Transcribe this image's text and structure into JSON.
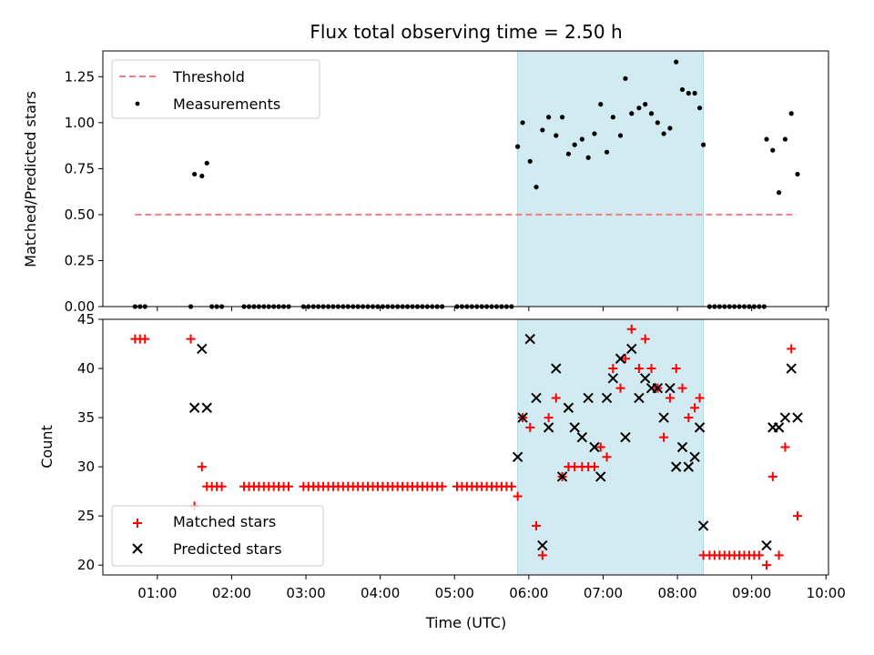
{
  "title": "Flux total observing time = 2.50 h",
  "xlabel": "Time (UTC)",
  "x_tick_labels": [
    "01:00",
    "02:00",
    "03:00",
    "04:00",
    "05:00",
    "06:00",
    "07:00",
    "08:00",
    "09:00",
    "10:00"
  ],
  "colors": {
    "threshold": "#f08080",
    "measurements": "#000000",
    "matched": "#ff0000",
    "predicted": "#000000",
    "span": "#add8e6"
  },
  "chart_data": [
    {
      "type": "scatter",
      "ylabel": "Matched/Predicted stars",
      "xlim": [
        "00:16",
        "10:02"
      ],
      "ylim": [
        0,
        1.39
      ],
      "y_ticks": [
        "0.00",
        "0.25",
        "0.50",
        "0.75",
        "1.00",
        "1.25"
      ],
      "shaded_span": [
        "05:51",
        "08:21"
      ],
      "legend": {
        "placement": "upper-left",
        "entries": [
          "Threshold",
          "Measurements"
        ]
      },
      "threshold": {
        "name": "Threshold",
        "y": 0.5,
        "x_range": [
          "00:42",
          "09:36"
        ]
      },
      "series": [
        {
          "name": "Measurements",
          "points": [
            [
              "00:42",
              0
            ],
            [
              "00:46",
              0
            ],
            [
              "00:50",
              0
            ],
            [
              "01:27",
              0
            ],
            [
              "01:30",
              0.72
            ],
            [
              "01:36",
              0.71
            ],
            [
              "01:40",
              0.78
            ],
            [
              "01:44",
              0
            ],
            [
              "01:48",
              0
            ],
            [
              "01:52",
              0
            ],
            [
              "02:10",
              0
            ],
            [
              "02:14",
              0
            ],
            [
              "02:18",
              0
            ],
            [
              "02:22",
              0
            ],
            [
              "02:26",
              0
            ],
            [
              "02:30",
              0
            ],
            [
              "02:34",
              0
            ],
            [
              "02:38",
              0
            ],
            [
              "02:42",
              0
            ],
            [
              "02:46",
              0
            ],
            [
              "02:58",
              0
            ],
            [
              "03:02",
              0
            ],
            [
              "03:06",
              0
            ],
            [
              "03:10",
              0
            ],
            [
              "03:14",
              0
            ],
            [
              "03:18",
              0
            ],
            [
              "03:22",
              0
            ],
            [
              "03:26",
              0
            ],
            [
              "03:30",
              0
            ],
            [
              "03:34",
              0
            ],
            [
              "03:38",
              0
            ],
            [
              "03:42",
              0
            ],
            [
              "03:46",
              0
            ],
            [
              "03:50",
              0
            ],
            [
              "03:54",
              0
            ],
            [
              "03:58",
              0
            ],
            [
              "04:02",
              0
            ],
            [
              "04:06",
              0
            ],
            [
              "04:10",
              0
            ],
            [
              "04:14",
              0
            ],
            [
              "04:18",
              0
            ],
            [
              "04:22",
              0
            ],
            [
              "04:26",
              0
            ],
            [
              "04:30",
              0
            ],
            [
              "04:34",
              0
            ],
            [
              "04:38",
              0
            ],
            [
              "04:42",
              0
            ],
            [
              "04:46",
              0
            ],
            [
              "04:50",
              0
            ],
            [
              "05:02",
              0
            ],
            [
              "05:06",
              0
            ],
            [
              "05:10",
              0
            ],
            [
              "05:14",
              0
            ],
            [
              "05:18",
              0
            ],
            [
              "05:22",
              0
            ],
            [
              "05:26",
              0
            ],
            [
              "05:30",
              0
            ],
            [
              "05:34",
              0
            ],
            [
              "05:38",
              0
            ],
            [
              "05:42",
              0
            ],
            [
              "05:46",
              0
            ],
            [
              "05:51",
              0.87
            ],
            [
              "05:55",
              1.0
            ],
            [
              "06:01",
              0.79
            ],
            [
              "06:06",
              0.65
            ],
            [
              "06:11",
              0.96
            ],
            [
              "06:16",
              1.03
            ],
            [
              "06:22",
              0.93
            ],
            [
              "06:27",
              1.03
            ],
            [
              "06:32",
              0.83
            ],
            [
              "06:37",
              0.88
            ],
            [
              "06:43",
              0.91
            ],
            [
              "06:48",
              0.81
            ],
            [
              "06:53",
              0.94
            ],
            [
              "06:58",
              1.1
            ],
            [
              "07:03",
              0.84
            ],
            [
              "07:08",
              1.03
            ],
            [
              "07:14",
              0.93
            ],
            [
              "07:18",
              1.24
            ],
            [
              "07:23",
              1.05
            ],
            [
              "07:29",
              1.08
            ],
            [
              "07:34",
              1.1
            ],
            [
              "07:39",
              1.05
            ],
            [
              "07:44",
              1.0
            ],
            [
              "07:49",
              0.94
            ],
            [
              "07:54",
              0.97
            ],
            [
              "07:59",
              1.33
            ],
            [
              "08:04",
              1.18
            ],
            [
              "08:09",
              1.16
            ],
            [
              "08:14",
              1.16
            ],
            [
              "08:18",
              1.08
            ],
            [
              "08:21",
              0.88
            ],
            [
              "08:26",
              0
            ],
            [
              "08:30",
              0
            ],
            [
              "08:34",
              0
            ],
            [
              "08:38",
              0
            ],
            [
              "08:42",
              0
            ],
            [
              "08:46",
              0
            ],
            [
              "08:50",
              0
            ],
            [
              "08:54",
              0
            ],
            [
              "08:58",
              0
            ],
            [
              "09:02",
              0
            ],
            [
              "09:06",
              0
            ],
            [
              "09:10",
              0
            ],
            [
              "09:12",
              0.91
            ],
            [
              "09:17",
              0.85
            ],
            [
              "09:22",
              0.62
            ],
            [
              "09:27",
              0.91
            ],
            [
              "09:32",
              1.05
            ],
            [
              "09:37",
              0.72
            ]
          ]
        }
      ]
    },
    {
      "type": "scatter",
      "ylabel": "Count",
      "xlim": [
        "00:16",
        "10:02"
      ],
      "ylim": [
        19,
        45
      ],
      "y_ticks": [
        "20",
        "25",
        "30",
        "35",
        "40",
        "45"
      ],
      "shaded_span": [
        "05:51",
        "08:21"
      ],
      "legend": {
        "placement": "lower-left",
        "entries": [
          "Matched stars",
          "Predicted stars"
        ]
      },
      "series": [
        {
          "name": "Matched stars",
          "points": [
            [
              "00:42",
              43
            ],
            [
              "00:46",
              43
            ],
            [
              "00:50",
              43
            ],
            [
              "01:27",
              43
            ],
            [
              "01:30",
              26
            ],
            [
              "01:36",
              30
            ],
            [
              "01:40",
              28
            ],
            [
              "01:44",
              28
            ],
            [
              "01:48",
              28
            ],
            [
              "01:52",
              28
            ],
            [
              "02:10",
              28
            ],
            [
              "02:14",
              28
            ],
            [
              "02:18",
              28
            ],
            [
              "02:22",
              28
            ],
            [
              "02:26",
              28
            ],
            [
              "02:30",
              28
            ],
            [
              "02:34",
              28
            ],
            [
              "02:38",
              28
            ],
            [
              "02:42",
              28
            ],
            [
              "02:46",
              28
            ],
            [
              "02:58",
              28
            ],
            [
              "03:02",
              28
            ],
            [
              "03:06",
              28
            ],
            [
              "03:10",
              28
            ],
            [
              "03:14",
              28
            ],
            [
              "03:18",
              28
            ],
            [
              "03:22",
              28
            ],
            [
              "03:26",
              28
            ],
            [
              "03:30",
              28
            ],
            [
              "03:34",
              28
            ],
            [
              "03:38",
              28
            ],
            [
              "03:42",
              28
            ],
            [
              "03:46",
              28
            ],
            [
              "03:50",
              28
            ],
            [
              "03:54",
              28
            ],
            [
              "03:58",
              28
            ],
            [
              "04:02",
              28
            ],
            [
              "04:06",
              28
            ],
            [
              "04:10",
              28
            ],
            [
              "04:14",
              28
            ],
            [
              "04:18",
              28
            ],
            [
              "04:22",
              28
            ],
            [
              "04:26",
              28
            ],
            [
              "04:30",
              28
            ],
            [
              "04:34",
              28
            ],
            [
              "04:38",
              28
            ],
            [
              "04:42",
              28
            ],
            [
              "04:46",
              28
            ],
            [
              "04:50",
              28
            ],
            [
              "05:02",
              28
            ],
            [
              "05:06",
              28
            ],
            [
              "05:10",
              28
            ],
            [
              "05:14",
              28
            ],
            [
              "05:18",
              28
            ],
            [
              "05:22",
              28
            ],
            [
              "05:26",
              28
            ],
            [
              "05:30",
              28
            ],
            [
              "05:34",
              28
            ],
            [
              "05:38",
              28
            ],
            [
              "05:42",
              28
            ],
            [
              "05:46",
              28
            ],
            [
              "05:51",
              27
            ],
            [
              "05:55",
              35
            ],
            [
              "06:01",
              34
            ],
            [
              "06:06",
              24
            ],
            [
              "06:11",
              21
            ],
            [
              "06:16",
              35
            ],
            [
              "06:22",
              37
            ],
            [
              "06:27",
              29
            ],
            [
              "06:32",
              30
            ],
            [
              "06:37",
              30
            ],
            [
              "06:43",
              30
            ],
            [
              "06:48",
              30
            ],
            [
              "06:53",
              30
            ],
            [
              "06:58",
              32
            ],
            [
              "07:03",
              31
            ],
            [
              "07:08",
              40
            ],
            [
              "07:14",
              38
            ],
            [
              "07:18",
              41
            ],
            [
              "07:23",
              44
            ],
            [
              "07:29",
              40
            ],
            [
              "07:34",
              43
            ],
            [
              "07:39",
              40
            ],
            [
              "07:44",
              38
            ],
            [
              "07:49",
              33
            ],
            [
              "07:54",
              37
            ],
            [
              "07:59",
              40
            ],
            [
              "08:04",
              38
            ],
            [
              "08:09",
              35
            ],
            [
              "08:14",
              36
            ],
            [
              "08:18",
              37
            ],
            [
              "08:21",
              21
            ],
            [
              "08:26",
              21
            ],
            [
              "08:30",
              21
            ],
            [
              "08:34",
              21
            ],
            [
              "08:38",
              21
            ],
            [
              "08:42",
              21
            ],
            [
              "08:46",
              21
            ],
            [
              "08:50",
              21
            ],
            [
              "08:54",
              21
            ],
            [
              "08:58",
              21
            ],
            [
              "09:02",
              21
            ],
            [
              "09:06",
              21
            ],
            [
              "09:12",
              20
            ],
            [
              "09:17",
              29
            ],
            [
              "09:22",
              21
            ],
            [
              "09:27",
              32
            ],
            [
              "09:32",
              42
            ],
            [
              "09:37",
              25
            ]
          ]
        },
        {
          "name": "Predicted stars",
          "points": [
            [
              "01:30",
              36
            ],
            [
              "01:36",
              42
            ],
            [
              "01:40",
              36
            ],
            [
              "05:51",
              31
            ],
            [
              "05:55",
              35
            ],
            [
              "06:01",
              43
            ],
            [
              "06:06",
              37
            ],
            [
              "06:11",
              22
            ],
            [
              "06:16",
              34
            ],
            [
              "06:22",
              40
            ],
            [
              "06:27",
              29
            ],
            [
              "06:32",
              36
            ],
            [
              "06:37",
              34
            ],
            [
              "06:43",
              33
            ],
            [
              "06:48",
              37
            ],
            [
              "06:53",
              32
            ],
            [
              "06:58",
              29
            ],
            [
              "07:03",
              37
            ],
            [
              "07:08",
              39
            ],
            [
              "07:14",
              41
            ],
            [
              "07:18",
              33
            ],
            [
              "07:23",
              42
            ],
            [
              "07:29",
              37
            ],
            [
              "07:34",
              39
            ],
            [
              "07:39",
              38
            ],
            [
              "07:44",
              38
            ],
            [
              "07:49",
              35
            ],
            [
              "07:54",
              38
            ],
            [
              "07:59",
              30
            ],
            [
              "08:04",
              32
            ],
            [
              "08:09",
              30
            ],
            [
              "08:14",
              31
            ],
            [
              "08:18",
              34
            ],
            [
              "08:21",
              24
            ],
            [
              "09:12",
              22
            ],
            [
              "09:17",
              34
            ],
            [
              "09:22",
              34
            ],
            [
              "09:27",
              35
            ],
            [
              "09:32",
              40
            ],
            [
              "09:37",
              35
            ]
          ]
        }
      ]
    }
  ]
}
